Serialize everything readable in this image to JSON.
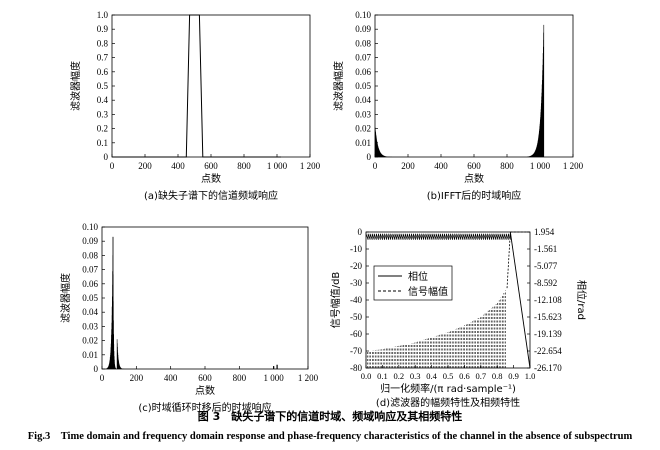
{
  "figure": {
    "caption_cn": "图 3　缺失子谱下的信道时域、频域响应及其相频特性",
    "caption_en": "Fig.3　Time domain and frequency domain response and phase-frequency characteristics of the channel in the absence of subspectrum"
  },
  "chart_data": [
    {
      "id": "a",
      "type": "line",
      "caption": "(a)缺失子谱下的信道频域响应",
      "xlabel": "点数",
      "ylabel": "滤波器幅度",
      "xlim": [
        0,
        1200
      ],
      "ylim": [
        0,
        1.0
      ],
      "xticks": [
        0,
        200,
        400,
        600,
        800,
        1000,
        1200
      ],
      "xtick_labels": [
        "0",
        "200",
        "400",
        "600",
        "800",
        "1 000",
        "1 200"
      ],
      "yticks": [
        0,
        0.1,
        0.2,
        0.3,
        0.4,
        0.5,
        0.6,
        0.7,
        0.8,
        0.9,
        1.0
      ],
      "ytick_labels": [
        "0",
        "0.1",
        "0.2",
        "0.3",
        "0.4",
        "0.5",
        "0.6",
        "0.7",
        "0.8",
        "0.9",
        "1.0"
      ],
      "x": [
        0,
        450,
        470,
        530,
        550,
        1024
      ],
      "y": [
        0,
        0,
        1.0,
        1.0,
        0,
        0
      ],
      "grid": false
    },
    {
      "id": "b",
      "type": "line",
      "caption": "(b)IFFT后的时域响应",
      "xlabel": "点数",
      "ylabel": "滤波器幅度",
      "xlim": [
        0,
        1200
      ],
      "ylim": [
        0,
        0.1
      ],
      "xticks": [
        0,
        200,
        400,
        600,
        800,
        1000,
        1200
      ],
      "xtick_labels": [
        "0",
        "200",
        "400",
        "600",
        "800",
        "1 000",
        "1 200"
      ],
      "yticks": [
        0,
        0.01,
        0.02,
        0.03,
        0.04,
        0.05,
        0.06,
        0.07,
        0.08,
        0.09,
        0.1
      ],
      "ytick_labels": [
        "0",
        "0.01",
        "0.02",
        "0.03",
        "0.04",
        "0.05",
        "0.06",
        "0.07",
        "0.08",
        "0.09",
        "0.10"
      ],
      "peaks": [
        {
          "x": 1,
          "y": 0.021
        },
        {
          "x": 1023,
          "y": 0.093
        }
      ],
      "decay_width": 100,
      "grid": false
    },
    {
      "id": "c",
      "type": "line",
      "caption": "(c)时域循环时移后的时域响应",
      "xlabel": "点数",
      "ylabel": "滤波器幅度",
      "xlim": [
        0,
        1200
      ],
      "ylim": [
        0,
        0.1
      ],
      "xticks": [
        0,
        200,
        400,
        600,
        800,
        1000,
        1200
      ],
      "xtick_labels": [
        "0",
        "200",
        "400",
        "600",
        "800",
        "1 000",
        "1 200"
      ],
      "yticks": [
        0,
        0.01,
        0.02,
        0.03,
        0.04,
        0.05,
        0.06,
        0.07,
        0.08,
        0.09,
        0.1
      ],
      "ytick_labels": [
        "0",
        "0.01",
        "0.02",
        "0.03",
        "0.04",
        "0.05",
        "0.06",
        "0.07",
        "0.08",
        "0.09",
        "0.10"
      ],
      "peaks": [
        {
          "x": 64,
          "y": 0.093
        },
        {
          "x": 88,
          "y": 0.021
        }
      ],
      "small_bumps": [
        {
          "x": 1000,
          "y": 0.002
        },
        {
          "x": 1020,
          "y": 0.003
        }
      ],
      "grid": false
    },
    {
      "id": "d",
      "type": "line",
      "caption": "(d)滤波器的幅频特性及相频特性",
      "xlabel": "归一化频率/(π rad·sample⁻¹)",
      "ylabel_left": "信号幅值/dB",
      "ylabel_right": "相位/rad",
      "xlim": [
        0,
        1.0
      ],
      "ylim_left": [
        -80,
        0
      ],
      "ylim_right": [
        -26.17,
        1.954
      ],
      "xticks": [
        0,
        0.1,
        0.2,
        0.3,
        0.4,
        0.5,
        0.6,
        0.7,
        0.8,
        0.9,
        1.0
      ],
      "xtick_labels": [
        "0.0",
        "0.1",
        "0.2",
        "0.3",
        "0.4",
        "0.5",
        "0.6",
        "0.7",
        "0.8",
        "0.9",
        "1.0"
      ],
      "yticks_left": [
        0,
        -10,
        -20,
        -30,
        -40,
        -50,
        -60,
        -70,
        -80
      ],
      "ytick_labels_left": [
        "0",
        "-10",
        "-20",
        "-30",
        "-40",
        "-50",
        "-60",
        "-70",
        "-80"
      ],
      "yticks_right": [
        1.954,
        -1.561,
        -5.077,
        -8.592,
        -12.108,
        -15.623,
        -19.139,
        -22.654,
        -26.17
      ],
      "ytick_labels_right": [
        "1.954",
        "-1.561",
        "-5.077",
        "-8.592",
        "-12.108",
        "-15.623",
        "-19.139",
        "-22.654",
        "-26.170"
      ],
      "series": [
        {
          "name": "相位",
          "style": "solid",
          "x": [
            0,
            0.88,
            1.0
          ],
          "y": [
            -2,
            -2,
            -80
          ]
        },
        {
          "name": "信号幅值",
          "style": "dashed",
          "x": [
            0,
            0.1,
            0.2,
            0.3,
            0.4,
            0.5,
            0.6,
            0.7,
            0.8,
            0.86,
            0.88,
            0.95,
            1.0
          ],
          "y": [
            -70,
            -69,
            -67,
            -65,
            -62,
            -59,
            -55,
            -50,
            -42,
            -33,
            0,
            0,
            0
          ]
        }
      ],
      "legend_position": "top-left",
      "grid": false
    }
  ]
}
